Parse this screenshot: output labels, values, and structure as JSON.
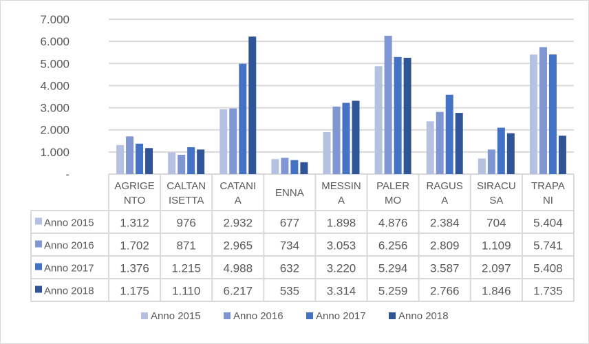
{
  "chart_data": {
    "type": "bar",
    "title": "",
    "xlabel": "",
    "ylabel": "",
    "ylim": [
      0,
      7000
    ],
    "yticks": [
      "-",
      "1.000",
      "2.000",
      "3.000",
      "4.000",
      "5.000",
      "6.000",
      "7.000"
    ],
    "grid": true,
    "legend_position": "bottom",
    "data_table": true,
    "categories": [
      [
        "AGRIGE",
        "NTO"
      ],
      [
        "CALTAN",
        "ISETTA"
      ],
      [
        "CATANI",
        "A"
      ],
      [
        "ENNA"
      ],
      [
        "MESSIN",
        "A"
      ],
      [
        "PALER",
        "MO"
      ],
      [
        "RAGUS",
        "A"
      ],
      [
        "SIRACU",
        "SA"
      ],
      [
        "TRAPA",
        "NI"
      ]
    ],
    "series": [
      {
        "name": "Anno 2015",
        "color": "#b4c1e1",
        "values": [
          1312,
          976,
          2932,
          677,
          1898,
          4876,
          2384,
          704,
          5404
        ],
        "labels": [
          "1.312",
          "976",
          "2.932",
          "677",
          "1.898",
          "4.876",
          "2.384",
          "704",
          "5.404"
        ]
      },
      {
        "name": "Anno 2016",
        "color": "#7f96d3",
        "values": [
          1702,
          871,
          2965,
          734,
          3053,
          6256,
          2809,
          1109,
          5741
        ],
        "labels": [
          "1.702",
          "871",
          "2.965",
          "734",
          "3.053",
          "6.256",
          "2.809",
          "1.109",
          "5.741"
        ]
      },
      {
        "name": "Anno 2017",
        "color": "#4472c4",
        "values": [
          1376,
          1215,
          4988,
          632,
          3220,
          5294,
          3587,
          2097,
          5408
        ],
        "labels": [
          "1.376",
          "1.215",
          "4.988",
          "632",
          "3.220",
          "5.294",
          "3.587",
          "2.097",
          "5.408"
        ]
      },
      {
        "name": "Anno 2018",
        "color": "#2f5597",
        "values": [
          1175,
          1110,
          6217,
          535,
          3314,
          5259,
          2766,
          1846,
          1735
        ],
        "labels": [
          "1.175",
          "1.110",
          "6.217",
          "535",
          "3.314",
          "5.259",
          "2.766",
          "1.846",
          "1.735"
        ]
      }
    ]
  }
}
